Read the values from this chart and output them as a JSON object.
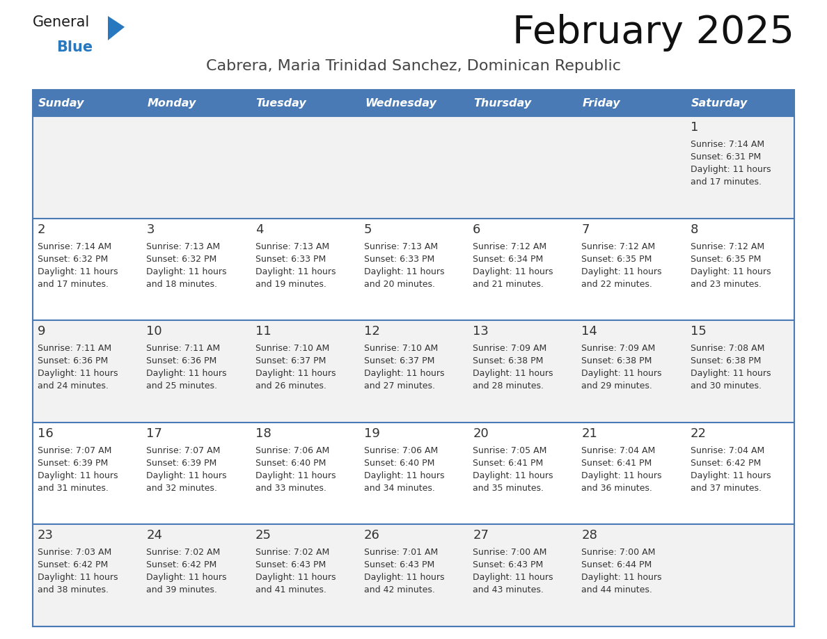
{
  "title": "February 2025",
  "subtitle": "Cabrera, Maria Trinidad Sanchez, Dominican Republic",
  "header_bg": "#4a7ab5",
  "header_text_color": "#ffffff",
  "day_names": [
    "Sunday",
    "Monday",
    "Tuesday",
    "Wednesday",
    "Thursday",
    "Friday",
    "Saturday"
  ],
  "row_bg_even": "#f2f2f2",
  "row_bg_odd": "#ffffff",
  "border_color": "#4a7ab5",
  "text_color": "#333333",
  "num_rows": 5,
  "days": [
    {
      "day": 1,
      "col": 6,
      "row": 0,
      "sunrise": "7:14 AM",
      "sunset": "6:31 PM",
      "daylight": "11 hours and 17 minutes."
    },
    {
      "day": 2,
      "col": 0,
      "row": 1,
      "sunrise": "7:14 AM",
      "sunset": "6:32 PM",
      "daylight": "11 hours and 17 minutes."
    },
    {
      "day": 3,
      "col": 1,
      "row": 1,
      "sunrise": "7:13 AM",
      "sunset": "6:32 PM",
      "daylight": "11 hours and 18 minutes."
    },
    {
      "day": 4,
      "col": 2,
      "row": 1,
      "sunrise": "7:13 AM",
      "sunset": "6:33 PM",
      "daylight": "11 hours and 19 minutes."
    },
    {
      "day": 5,
      "col": 3,
      "row": 1,
      "sunrise": "7:13 AM",
      "sunset": "6:33 PM",
      "daylight": "11 hours and 20 minutes."
    },
    {
      "day": 6,
      "col": 4,
      "row": 1,
      "sunrise": "7:12 AM",
      "sunset": "6:34 PM",
      "daylight": "11 hours and 21 minutes."
    },
    {
      "day": 7,
      "col": 5,
      "row": 1,
      "sunrise": "7:12 AM",
      "sunset": "6:35 PM",
      "daylight": "11 hours and 22 minutes."
    },
    {
      "day": 8,
      "col": 6,
      "row": 1,
      "sunrise": "7:12 AM",
      "sunset": "6:35 PM",
      "daylight": "11 hours and 23 minutes."
    },
    {
      "day": 9,
      "col": 0,
      "row": 2,
      "sunrise": "7:11 AM",
      "sunset": "6:36 PM",
      "daylight": "11 hours and 24 minutes."
    },
    {
      "day": 10,
      "col": 1,
      "row": 2,
      "sunrise": "7:11 AM",
      "sunset": "6:36 PM",
      "daylight": "11 hours and 25 minutes."
    },
    {
      "day": 11,
      "col": 2,
      "row": 2,
      "sunrise": "7:10 AM",
      "sunset": "6:37 PM",
      "daylight": "11 hours and 26 minutes."
    },
    {
      "day": 12,
      "col": 3,
      "row": 2,
      "sunrise": "7:10 AM",
      "sunset": "6:37 PM",
      "daylight": "11 hours and 27 minutes."
    },
    {
      "day": 13,
      "col": 4,
      "row": 2,
      "sunrise": "7:09 AM",
      "sunset": "6:38 PM",
      "daylight": "11 hours and 28 minutes."
    },
    {
      "day": 14,
      "col": 5,
      "row": 2,
      "sunrise": "7:09 AM",
      "sunset": "6:38 PM",
      "daylight": "11 hours and 29 minutes."
    },
    {
      "day": 15,
      "col": 6,
      "row": 2,
      "sunrise": "7:08 AM",
      "sunset": "6:38 PM",
      "daylight": "11 hours and 30 minutes."
    },
    {
      "day": 16,
      "col": 0,
      "row": 3,
      "sunrise": "7:07 AM",
      "sunset": "6:39 PM",
      "daylight": "11 hours and 31 minutes."
    },
    {
      "day": 17,
      "col": 1,
      "row": 3,
      "sunrise": "7:07 AM",
      "sunset": "6:39 PM",
      "daylight": "11 hours and 32 minutes."
    },
    {
      "day": 18,
      "col": 2,
      "row": 3,
      "sunrise": "7:06 AM",
      "sunset": "6:40 PM",
      "daylight": "11 hours and 33 minutes."
    },
    {
      "day": 19,
      "col": 3,
      "row": 3,
      "sunrise": "7:06 AM",
      "sunset": "6:40 PM",
      "daylight": "11 hours and 34 minutes."
    },
    {
      "day": 20,
      "col": 4,
      "row": 3,
      "sunrise": "7:05 AM",
      "sunset": "6:41 PM",
      "daylight": "11 hours and 35 minutes."
    },
    {
      "day": 21,
      "col": 5,
      "row": 3,
      "sunrise": "7:04 AM",
      "sunset": "6:41 PM",
      "daylight": "11 hours and 36 minutes."
    },
    {
      "day": 22,
      "col": 6,
      "row": 3,
      "sunrise": "7:04 AM",
      "sunset": "6:42 PM",
      "daylight": "11 hours and 37 minutes."
    },
    {
      "day": 23,
      "col": 0,
      "row": 4,
      "sunrise": "7:03 AM",
      "sunset": "6:42 PM",
      "daylight": "11 hours and 38 minutes."
    },
    {
      "day": 24,
      "col": 1,
      "row": 4,
      "sunrise": "7:02 AM",
      "sunset": "6:42 PM",
      "daylight": "11 hours and 39 minutes."
    },
    {
      "day": 25,
      "col": 2,
      "row": 4,
      "sunrise": "7:02 AM",
      "sunset": "6:43 PM",
      "daylight": "11 hours and 41 minutes."
    },
    {
      "day": 26,
      "col": 3,
      "row": 4,
      "sunrise": "7:01 AM",
      "sunset": "6:43 PM",
      "daylight": "11 hours and 42 minutes."
    },
    {
      "day": 27,
      "col": 4,
      "row": 4,
      "sunrise": "7:00 AM",
      "sunset": "6:43 PM",
      "daylight": "11 hours and 43 minutes."
    },
    {
      "day": 28,
      "col": 5,
      "row": 4,
      "sunrise": "7:00 AM",
      "sunset": "6:44 PM",
      "daylight": "11 hours and 44 minutes."
    }
  ],
  "logo_text1": "General",
  "logo_text2": "Blue",
  "logo_text1_color": "#1a1a1a",
  "logo_text2_color": "#2878c0",
  "logo_triangle_color": "#2878c0"
}
